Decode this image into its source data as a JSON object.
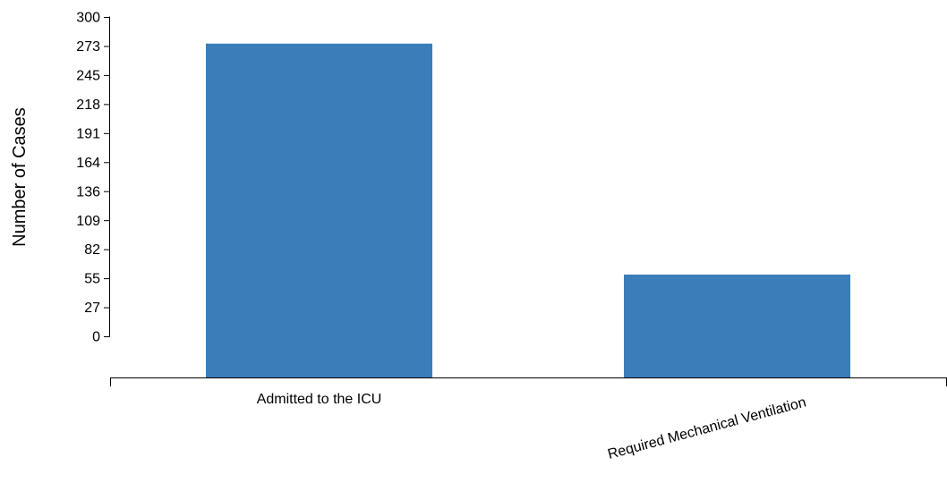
{
  "chart_data": {
    "type": "bar",
    "title": "",
    "xlabel": "",
    "ylabel": "Number of Cases",
    "categories": [
      "Admitted to the ICU",
      "Required Mechanical Ventilation"
    ],
    "values": [
      275,
      58
    ],
    "y_ticks": [
      "0",
      "27",
      "55",
      "82",
      "109",
      "136",
      "164",
      "191",
      "218",
      "245",
      "273",
      "300"
    ],
    "ylim": [
      0,
      300
    ],
    "bar_color": "#3a7db8",
    "grid": false,
    "legend": "none"
  }
}
